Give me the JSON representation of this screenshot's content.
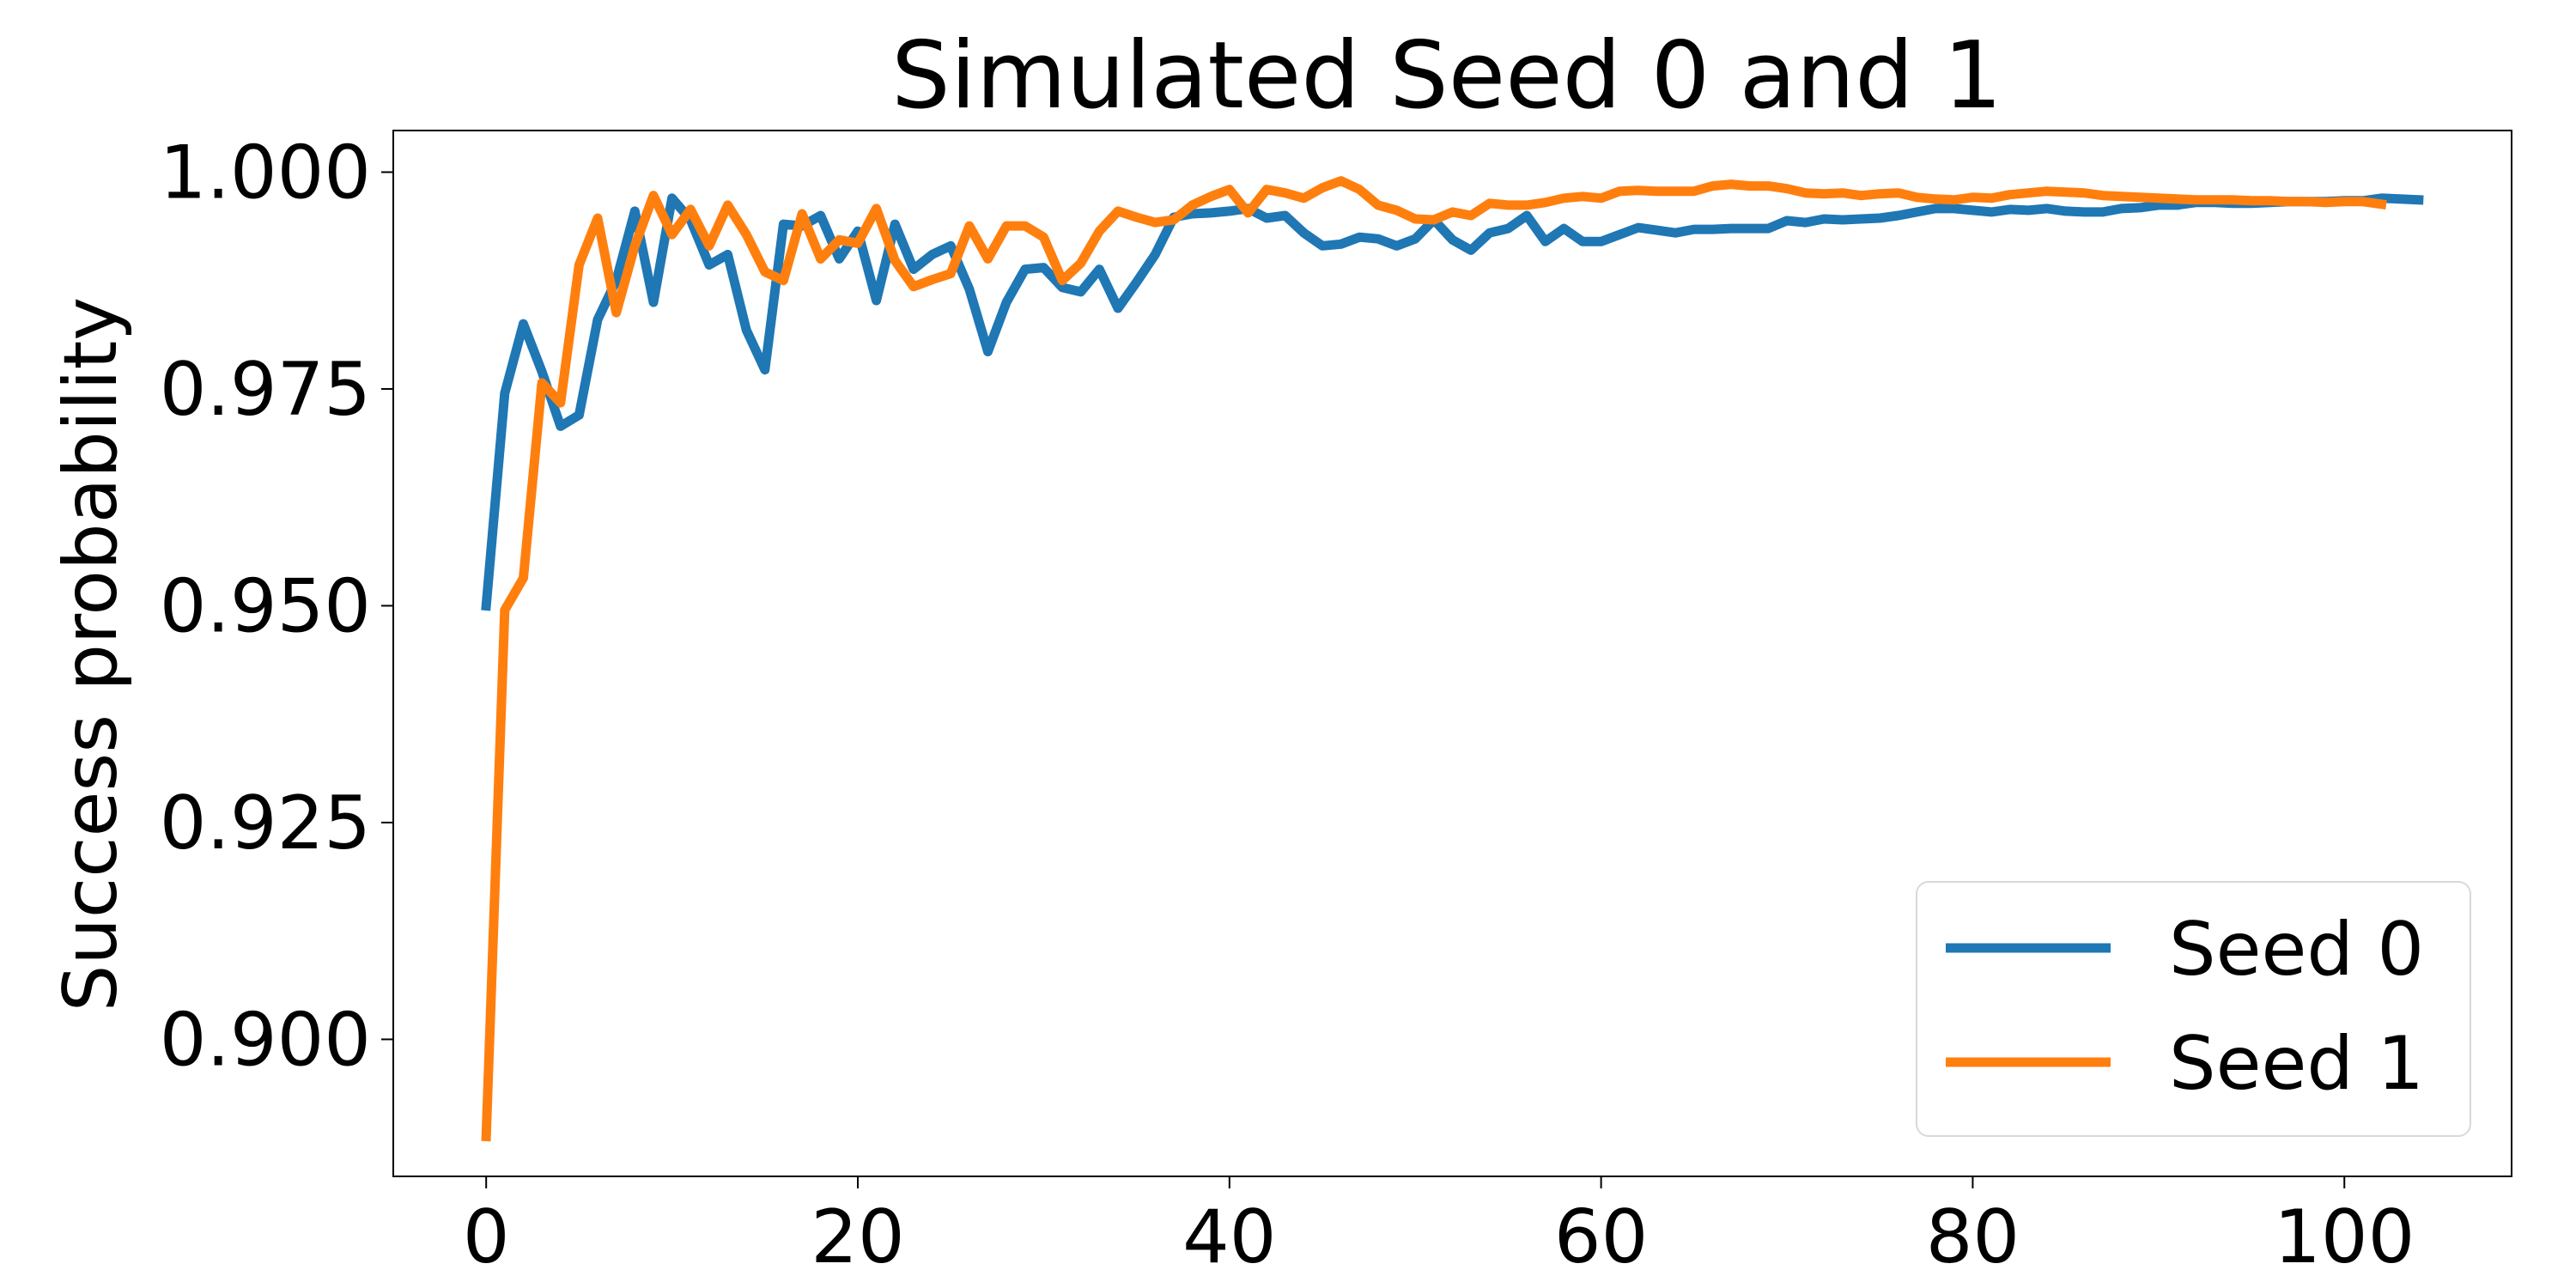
{
  "chart_data": {
    "type": "line",
    "title": "Simulated Seed 0 and 1",
    "xlabel": "",
    "ylabel": "Success probability",
    "xlim": [
      -5,
      109
    ],
    "ylim": [
      0.8842,
      1.0048
    ],
    "x_ticks": [
      0,
      20,
      40,
      60,
      80,
      100
    ],
    "x_tick_labels": [
      "0",
      "20",
      "40",
      "60",
      "80",
      "100"
    ],
    "y_ticks": [
      0.9,
      0.925,
      0.95,
      0.975,
      1.0
    ],
    "y_tick_labels": [
      "0.900",
      "0.925",
      "0.950",
      "0.975",
      "1.000"
    ],
    "grid": false,
    "legend_position": "lower-right",
    "series": [
      {
        "name": "Seed 0",
        "color": "#1f77b4",
        "values": [
          0.95,
          0.9745,
          0.9825,
          0.977,
          0.9707,
          0.972,
          0.983,
          0.9875,
          0.9955,
          0.985,
          0.997,
          0.9945,
          0.9893,
          0.9905,
          0.9818,
          0.9772,
          0.994,
          0.9938,
          0.995,
          0.99,
          0.9932,
          0.9852,
          0.994,
          0.9888,
          0.9905,
          0.9915,
          0.9865,
          0.9793,
          0.985,
          0.9888,
          0.989,
          0.9867,
          0.9862,
          0.9888,
          0.9843,
          0.9873,
          0.9905,
          0.9948,
          0.9952,
          0.9953,
          0.9955,
          0.9958,
          0.9947,
          0.995,
          0.993,
          0.9915,
          0.9917,
          0.9925,
          0.9923,
          0.9915,
          0.9923,
          0.9945,
          0.9922,
          0.991,
          0.993,
          0.9935,
          0.995,
          0.992,
          0.9935,
          0.992,
          0.992,
          0.9928,
          0.9936,
          0.9933,
          0.993,
          0.9934,
          0.9934,
          0.9935,
          0.9935,
          0.9935,
          0.9944,
          0.9942,
          0.9946,
          0.9945,
          0.9946,
          0.9947,
          0.995,
          0.9954,
          0.9958,
          0.9958,
          0.9956,
          0.9954,
          0.9957,
          0.9956,
          0.9958,
          0.9955,
          0.9954,
          0.9954,
          0.9958,
          0.9959,
          0.9962,
          0.9962,
          0.9965,
          0.9965,
          0.9964,
          0.9964,
          0.9965,
          0.9966,
          0.9966,
          0.9966,
          0.9967,
          0.9967,
          0.997,
          0.9969,
          0.9968
        ]
      },
      {
        "name": "Seed 1",
        "color": "#ff7f0e",
        "values": [
          0.8888,
          0.9495,
          0.9532,
          0.9757,
          0.9734,
          0.9893,
          0.9947,
          0.9838,
          0.9915,
          0.9973,
          0.9928,
          0.9957,
          0.9915,
          0.9962,
          0.9928,
          0.9885,
          0.9875,
          0.9952,
          0.99,
          0.9922,
          0.9918,
          0.9958,
          0.9898,
          0.9868,
          0.9876,
          0.9883,
          0.9938,
          0.99,
          0.9938,
          0.9938,
          0.9925,
          0.9875,
          0.9895,
          0.9932,
          0.9955,
          0.9948,
          0.9942,
          0.9945,
          0.9962,
          0.9972,
          0.998,
          0.9953,
          0.998,
          0.9976,
          0.997,
          0.9982,
          0.999,
          0.998,
          0.9962,
          0.9956,
          0.9946,
          0.9945,
          0.9954,
          0.995,
          0.9964,
          0.9962,
          0.9962,
          0.9965,
          0.997,
          0.9972,
          0.997,
          0.9978,
          0.9979,
          0.9978,
          0.9978,
          0.9978,
          0.9984,
          0.9986,
          0.9984,
          0.9984,
          0.9981,
          0.9976,
          0.9975,
          0.9976,
          0.9973,
          0.9975,
          0.9976,
          0.9971,
          0.9969,
          0.9968,
          0.9971,
          0.997,
          0.9974,
          0.9976,
          0.9978,
          0.9977,
          0.9976,
          0.9973,
          0.9972,
          0.9971,
          0.997,
          0.9969,
          0.9968,
          0.9968,
          0.9968,
          0.9967,
          0.9967,
          0.9966,
          0.9966,
          0.9965,
          0.9966,
          0.9966,
          0.9963
        ]
      }
    ]
  }
}
